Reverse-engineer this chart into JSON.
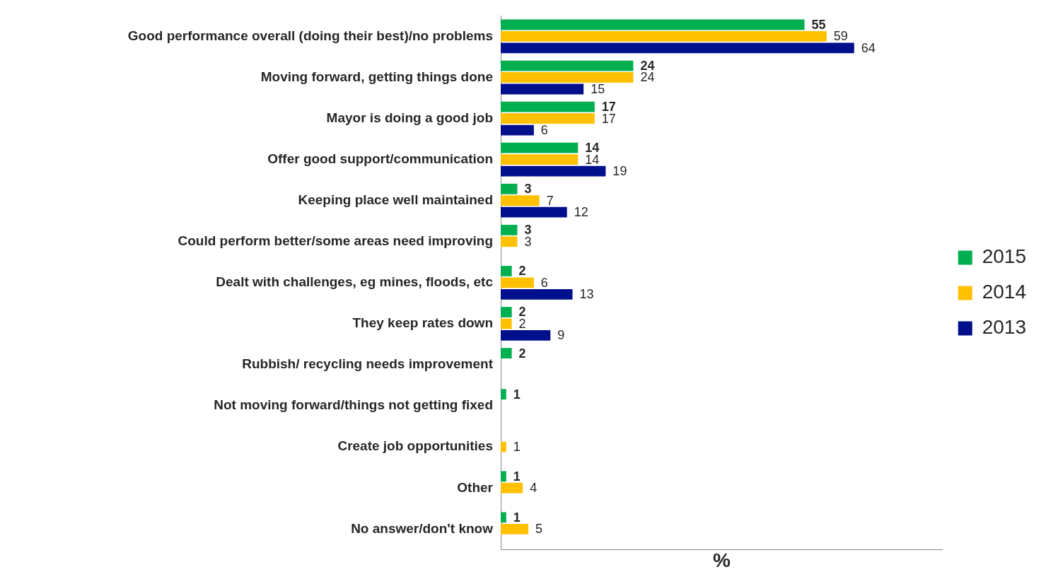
{
  "chart_data": {
    "type": "bar",
    "orientation": "horizontal",
    "xlabel": "%",
    "categories": [
      "Good performance overall (doing their best)/no problems",
      "Moving forward, getting things done",
      "Mayor is doing a good job",
      "Offer good support/communication",
      "Keeping place well maintained",
      "Could perform better/some areas need improving",
      "Dealt with challenges, eg mines, floods, etc",
      "They keep rates down",
      "Rubbish/ recycling needs improvement",
      "Not moving forward/things not getting fixed",
      "Create job opportunities",
      "Other",
      "No answer/don't know"
    ],
    "series": [
      {
        "name": "2015",
        "color": "#00b050",
        "values": [
          55,
          24,
          17,
          14,
          3,
          3,
          2,
          2,
          2,
          1,
          null,
          1,
          1
        ]
      },
      {
        "name": "2014",
        "color": "#ffc000",
        "values": [
          59,
          24,
          17,
          14,
          7,
          3,
          6,
          2,
          null,
          null,
          1,
          4,
          5
        ]
      },
      {
        "name": "2013",
        "color": "#000f8c",
        "values": [
          64,
          15,
          6,
          19,
          12,
          null,
          13,
          9,
          null,
          null,
          null,
          null,
          null
        ]
      }
    ],
    "xlim": [
      0,
      80
    ],
    "data_labels": true,
    "legend": "right",
    "grid": false,
    "tick_labels": "y"
  }
}
